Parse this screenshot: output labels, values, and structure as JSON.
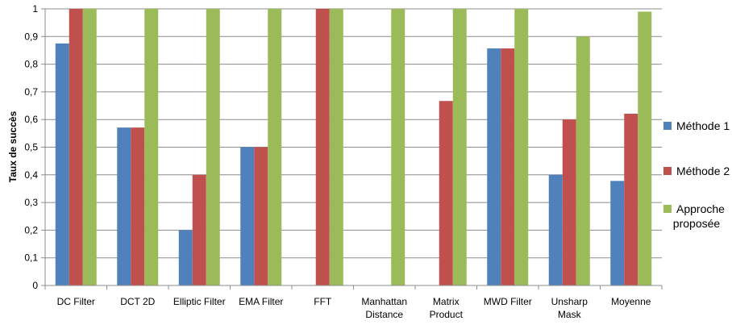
{
  "chart_data": {
    "type": "bar",
    "categories": [
      [
        "DC Filter"
      ],
      [
        "DCT 2D"
      ],
      [
        "Elliptic Filter"
      ],
      [
        "EMA Filter"
      ],
      [
        "FFT"
      ],
      [
        "Manhattan",
        "Distance"
      ],
      [
        "Matrix",
        "Product"
      ],
      [
        "MWD Filter"
      ],
      [
        "Unsharp",
        "Mask"
      ],
      [
        "Moyenne"
      ]
    ],
    "series": [
      {
        "name": "Méthode 1",
        "name_lines": [
          "Méthode 1"
        ],
        "color": "#4f81bd",
        "values": [
          0.875,
          0.571,
          0.2,
          0.5,
          0,
          0,
          0,
          0.857,
          0.4,
          0.378
        ]
      },
      {
        "name": "Méthode 2",
        "name_lines": [
          "Méthode 2"
        ],
        "color": "#c0504d",
        "values": [
          1,
          0.571,
          0.4,
          0.5,
          1,
          0,
          0.667,
          0.857,
          0.6,
          0.621
        ]
      },
      {
        "name": "Approche proposée",
        "name_lines": [
          "Approche",
          "proposée"
        ],
        "color": "#9bbb59",
        "values": [
          1,
          1,
          1,
          1,
          1,
          1,
          1,
          1,
          0.9,
          0.99
        ]
      }
    ],
    "title": "",
    "xlabel": "",
    "ylabel": "Taux de succès",
    "ylim": [
      0,
      1
    ],
    "yticks": [
      "0",
      "0,1",
      "0,2",
      "0,3",
      "0,4",
      "0,5",
      "0,6",
      "0,7",
      "0,8",
      "0,9",
      "1"
    ],
    "grid": true,
    "legend": "right"
  }
}
